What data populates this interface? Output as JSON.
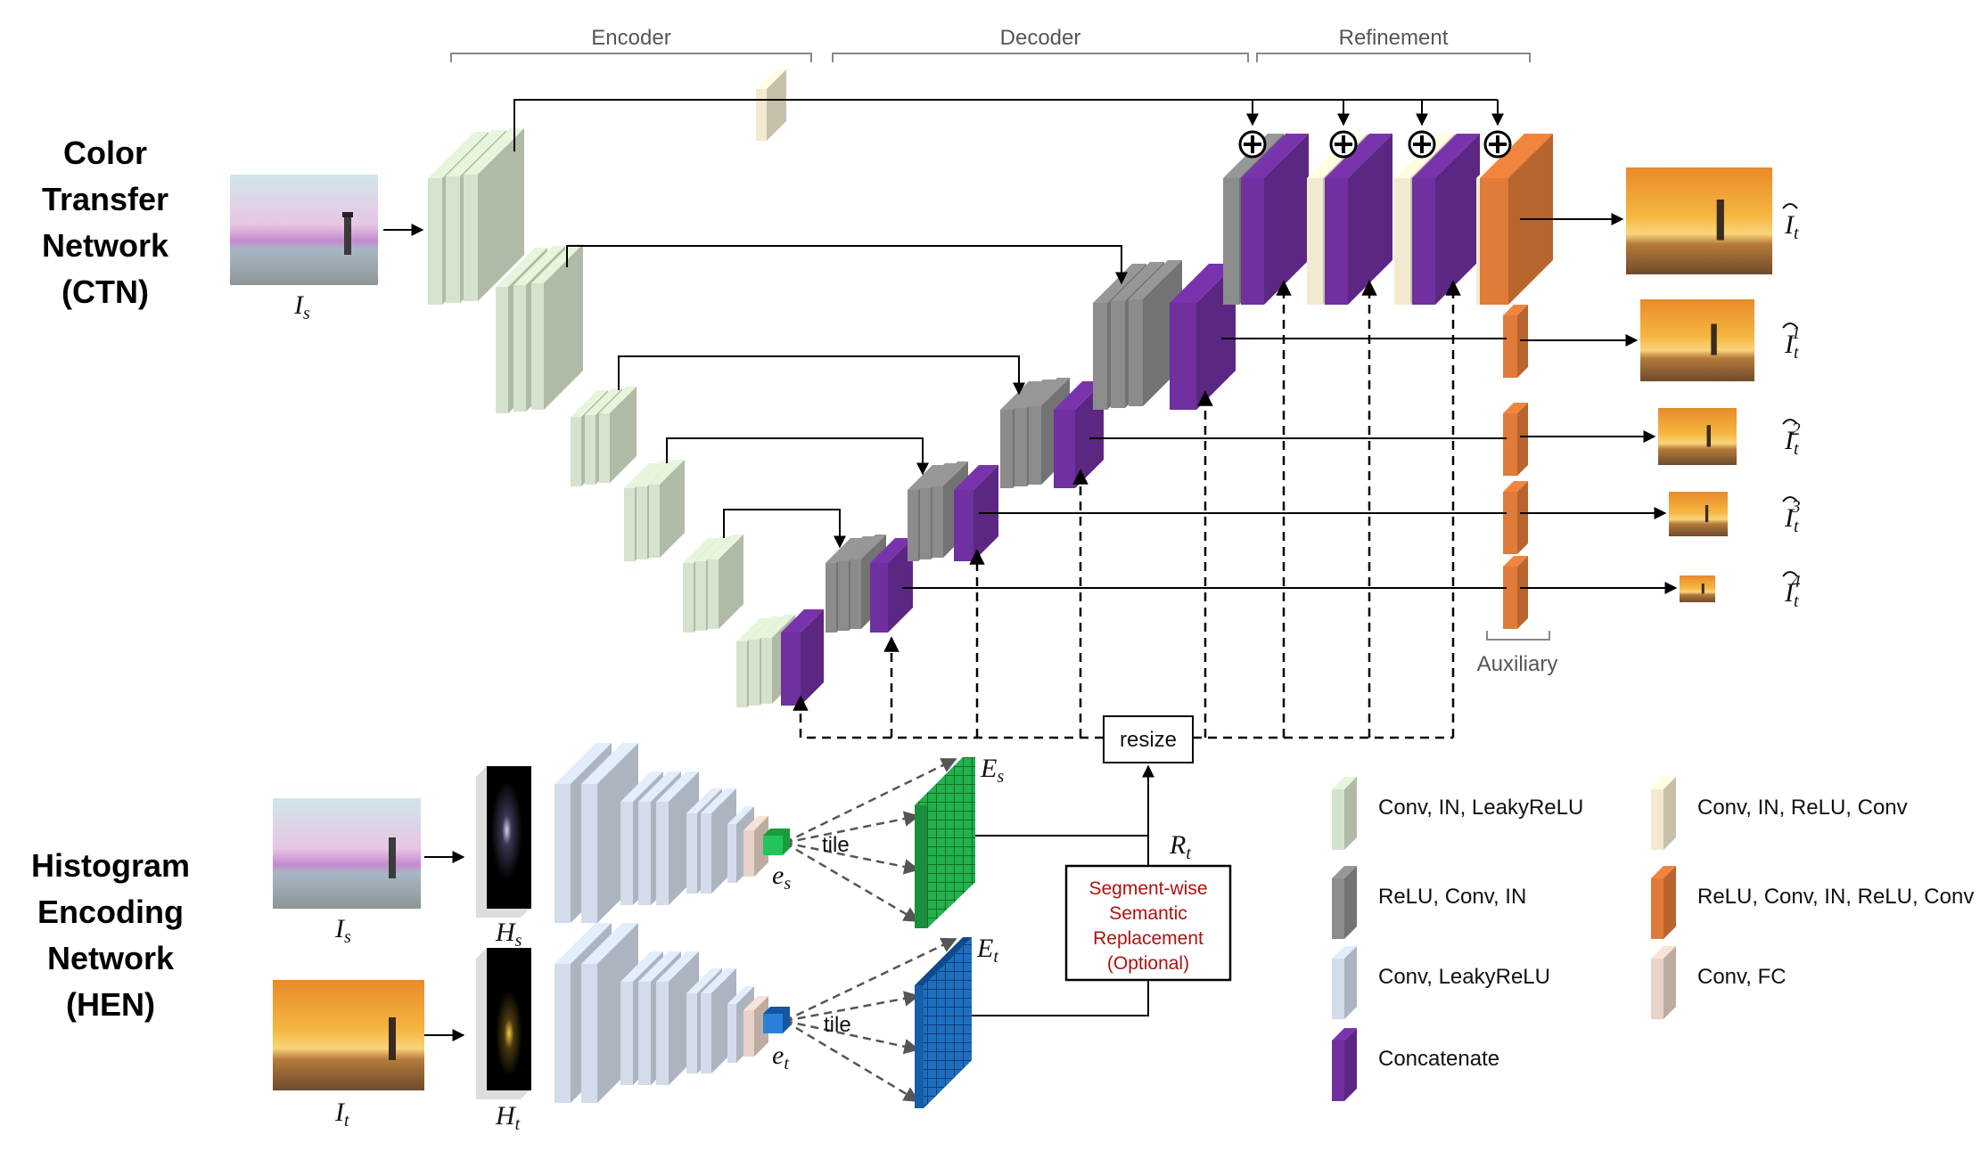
{
  "ctn": {
    "title_lines": [
      "Color",
      "Transfer",
      "Network",
      "(CTN)"
    ]
  },
  "hen": {
    "title_lines": [
      "Histogram",
      "Encoding",
      "Network",
      "(HEN)"
    ]
  },
  "sections": {
    "encoder": "Encoder",
    "decoder": "Decoder",
    "refinement": "Refinement",
    "auxiliary": "Auxiliary"
  },
  "labels": {
    "is_base": "I",
    "is_sub": "s",
    "it_base": "I",
    "it_sub": "t",
    "hs_base": "H",
    "hs_sub": "s",
    "ht_base": "H",
    "ht_sub": "t",
    "es_base": "e",
    "es_sub": "s",
    "et_base": "e",
    "et_sub": "t",
    "Es_base": "E",
    "Es_sub": "s",
    "Et_base": "E",
    "Et_sub": "t",
    "rt_base": "R",
    "rt_sub": "t",
    "out_base": "I",
    "out_sub": "t",
    "aux_sup": [
      "1",
      "2",
      "3",
      "4"
    ],
    "tile": "tile",
    "resize": "resize",
    "segment_lines": [
      "Segment-wise",
      "Semantic",
      "Replacement",
      "(Optional)"
    ]
  },
  "legend": [
    {
      "label": "Conv, IN, LeakyReLU",
      "color": "#d5e3cc"
    },
    {
      "label": "ReLU, Conv, IN",
      "color": "#8c8c8c"
    },
    {
      "label": "Conv, LeakyReLU",
      "color": "#d2dcea"
    },
    {
      "label": "Concatenate",
      "color": "#7030a0"
    },
    {
      "label": "Conv, IN, ReLU, Conv",
      "color": "#f2ead0"
    },
    {
      "label": "ReLU, Conv, IN, ReLU, Conv",
      "color": "#e07b39"
    },
    {
      "label": "Conv, FC",
      "color": "#e6d2c6"
    }
  ],
  "colors": {
    "encoder": "#d5e3cc",
    "decoder": "#8c8c8c",
    "hen_block": "#d2dcea",
    "concat": "#7030a0",
    "refine": "#f2ead0",
    "aux": "#e07b39",
    "fc": "#e6d2c6",
    "Es_grid": "#22b14c",
    "Et_grid": "#1f6fc0"
  },
  "icons": {
    "plus": "circled-plus-icon",
    "source_image": "lighthouse-pink-sky-image",
    "target_image": "lighthouse-sunset-image",
    "histogram": "histogram-map-image"
  }
}
